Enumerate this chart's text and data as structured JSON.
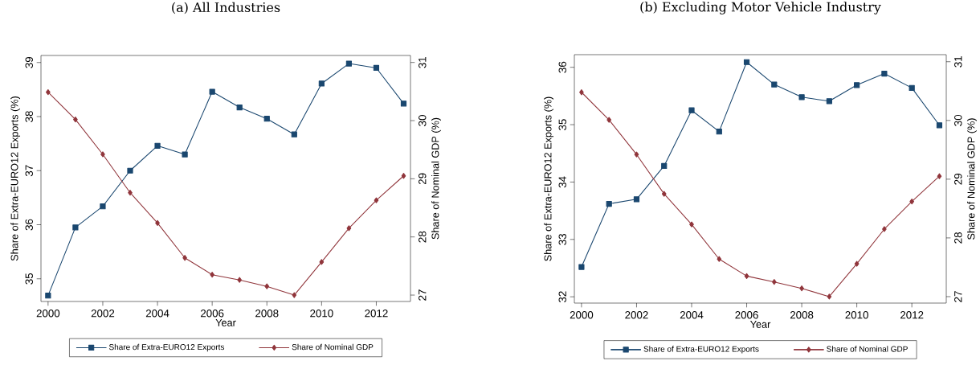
{
  "chart_data": [
    {
      "type": "line",
      "title": "(a) All Industries",
      "xlabel": "Year",
      "ylabel": "Share of Extra-EURO12 Exports (%)",
      "y2label": "Share of Nominal GDP (%)",
      "x": [
        2000,
        2001,
        2002,
        2003,
        2004,
        2005,
        2006,
        2007,
        2008,
        2009,
        2010,
        2011,
        2012,
        2013
      ],
      "series": [
        {
          "name": "Share of Extra-EURO12 Exports",
          "color": "#1a476f",
          "marker": "square",
          "values": [
            34.69,
            35.95,
            36.34,
            37.0,
            37.46,
            37.3,
            38.46,
            38.17,
            37.96,
            37.67,
            38.61,
            38.98,
            38.9,
            38.24
          ]
        },
        {
          "name": "Share of Nominal GDP",
          "color": "#90353b",
          "marker": "diamond",
          "axis": "y2",
          "values": [
            30.49,
            30.02,
            29.42,
            28.76,
            28.24,
            27.64,
            27.35,
            27.26,
            27.15,
            27.0,
            27.57,
            28.15,
            28.63,
            29.05
          ]
        }
      ],
      "xlim": [
        1999.74,
        2013.25
      ],
      "xticks": [
        2000,
        2002,
        2004,
        2006,
        2008,
        2010,
        2012
      ],
      "ylim": [
        34.58,
        39.13
      ],
      "yticks": [
        35,
        36,
        37,
        38,
        39
      ],
      "y2lim": [
        26.89,
        31.12
      ],
      "y2ticks": [
        27,
        28,
        29,
        30,
        31
      ],
      "legend": "bottom"
    },
    {
      "type": "line",
      "title": "(b) Excluding Motor Vehicle Industry",
      "xlabel": "Year",
      "ylabel": "Share of Extra-EURO12 Exports (%)",
      "y2label": "Share of Nominal GDP (%)",
      "x": [
        2000,
        2001,
        2002,
        2003,
        2004,
        2005,
        2006,
        2007,
        2008,
        2009,
        2010,
        2011,
        2012,
        2013
      ],
      "series": [
        {
          "name": "Share of Extra-EURO12 Exports",
          "color": "#1a476f",
          "marker": "square",
          "values": [
            32.52,
            33.62,
            33.7,
            34.28,
            35.25,
            34.88,
            36.09,
            35.7,
            35.48,
            35.41,
            35.69,
            35.89,
            35.64,
            34.99
          ]
        },
        {
          "name": "Share of Nominal GDP",
          "color": "#90353b",
          "marker": "diamond",
          "axis": "y2",
          "values": [
            30.48,
            30.01,
            29.42,
            28.75,
            28.23,
            27.64,
            27.35,
            27.25,
            27.14,
            27.0,
            27.56,
            28.15,
            28.62,
            29.05
          ]
        }
      ],
      "xlim": [
        1999.74,
        2013.25
      ],
      "xticks": [
        2000,
        2002,
        2004,
        2006,
        2008,
        2010,
        2012
      ],
      "ylim": [
        31.89,
        36.22
      ],
      "yticks": [
        32,
        33,
        34,
        35,
        36
      ],
      "y2lim": [
        26.89,
        31.12
      ],
      "y2ticks": [
        27,
        28,
        29,
        30,
        31
      ],
      "legend": "bottom"
    }
  ]
}
